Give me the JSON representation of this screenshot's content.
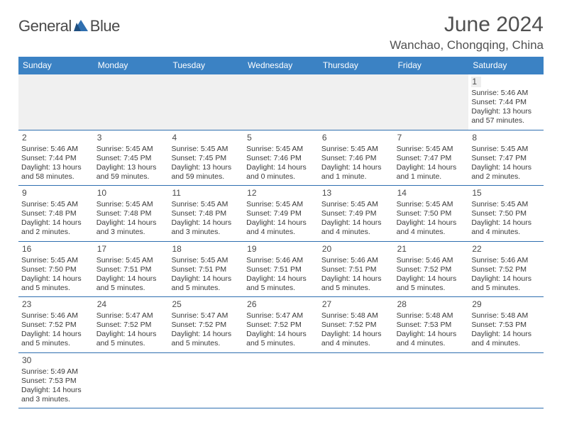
{
  "logo": {
    "text_gray": "General",
    "text_blue": "Blue",
    "icon_color": "#2f6fb0"
  },
  "title": "June 2024",
  "location": "Wanchao, Chongqing, China",
  "colors": {
    "header_bg": "#3b82c4",
    "header_text": "#ffffff",
    "row_divider": "#2f6fb0",
    "daynum_bg": "#eeeeee",
    "empty_bg": "#f0f0f0",
    "text": "#3a3a3a",
    "title_text": "#505050"
  },
  "weekdays": [
    "Sunday",
    "Monday",
    "Tuesday",
    "Wednesday",
    "Thursday",
    "Friday",
    "Saturday"
  ],
  "grid": [
    [
      {
        "empty": true
      },
      {
        "empty": true
      },
      {
        "empty": true
      },
      {
        "empty": true
      },
      {
        "empty": true
      },
      {
        "empty": true
      },
      {
        "day": "1",
        "sunrise": "Sunrise: 5:46 AM",
        "sunset": "Sunset: 7:44 PM",
        "daylight": "Daylight: 13 hours and 57 minutes."
      }
    ],
    [
      {
        "day": "2",
        "sunrise": "Sunrise: 5:46 AM",
        "sunset": "Sunset: 7:44 PM",
        "daylight": "Daylight: 13 hours and 58 minutes."
      },
      {
        "day": "3",
        "sunrise": "Sunrise: 5:45 AM",
        "sunset": "Sunset: 7:45 PM",
        "daylight": "Daylight: 13 hours and 59 minutes."
      },
      {
        "day": "4",
        "sunrise": "Sunrise: 5:45 AM",
        "sunset": "Sunset: 7:45 PM",
        "daylight": "Daylight: 13 hours and 59 minutes."
      },
      {
        "day": "5",
        "sunrise": "Sunrise: 5:45 AM",
        "sunset": "Sunset: 7:46 PM",
        "daylight": "Daylight: 14 hours and 0 minutes."
      },
      {
        "day": "6",
        "sunrise": "Sunrise: 5:45 AM",
        "sunset": "Sunset: 7:46 PM",
        "daylight": "Daylight: 14 hours and 1 minute."
      },
      {
        "day": "7",
        "sunrise": "Sunrise: 5:45 AM",
        "sunset": "Sunset: 7:47 PM",
        "daylight": "Daylight: 14 hours and 1 minute."
      },
      {
        "day": "8",
        "sunrise": "Sunrise: 5:45 AM",
        "sunset": "Sunset: 7:47 PM",
        "daylight": "Daylight: 14 hours and 2 minutes."
      }
    ],
    [
      {
        "day": "9",
        "sunrise": "Sunrise: 5:45 AM",
        "sunset": "Sunset: 7:48 PM",
        "daylight": "Daylight: 14 hours and 2 minutes."
      },
      {
        "day": "10",
        "sunrise": "Sunrise: 5:45 AM",
        "sunset": "Sunset: 7:48 PM",
        "daylight": "Daylight: 14 hours and 3 minutes."
      },
      {
        "day": "11",
        "sunrise": "Sunrise: 5:45 AM",
        "sunset": "Sunset: 7:48 PM",
        "daylight": "Daylight: 14 hours and 3 minutes."
      },
      {
        "day": "12",
        "sunrise": "Sunrise: 5:45 AM",
        "sunset": "Sunset: 7:49 PM",
        "daylight": "Daylight: 14 hours and 4 minutes."
      },
      {
        "day": "13",
        "sunrise": "Sunrise: 5:45 AM",
        "sunset": "Sunset: 7:49 PM",
        "daylight": "Daylight: 14 hours and 4 minutes."
      },
      {
        "day": "14",
        "sunrise": "Sunrise: 5:45 AM",
        "sunset": "Sunset: 7:50 PM",
        "daylight": "Daylight: 14 hours and 4 minutes."
      },
      {
        "day": "15",
        "sunrise": "Sunrise: 5:45 AM",
        "sunset": "Sunset: 7:50 PM",
        "daylight": "Daylight: 14 hours and 4 minutes."
      }
    ],
    [
      {
        "day": "16",
        "sunrise": "Sunrise: 5:45 AM",
        "sunset": "Sunset: 7:50 PM",
        "daylight": "Daylight: 14 hours and 5 minutes."
      },
      {
        "day": "17",
        "sunrise": "Sunrise: 5:45 AM",
        "sunset": "Sunset: 7:51 PM",
        "daylight": "Daylight: 14 hours and 5 minutes."
      },
      {
        "day": "18",
        "sunrise": "Sunrise: 5:45 AM",
        "sunset": "Sunset: 7:51 PM",
        "daylight": "Daylight: 14 hours and 5 minutes."
      },
      {
        "day": "19",
        "sunrise": "Sunrise: 5:46 AM",
        "sunset": "Sunset: 7:51 PM",
        "daylight": "Daylight: 14 hours and 5 minutes."
      },
      {
        "day": "20",
        "sunrise": "Sunrise: 5:46 AM",
        "sunset": "Sunset: 7:51 PM",
        "daylight": "Daylight: 14 hours and 5 minutes."
      },
      {
        "day": "21",
        "sunrise": "Sunrise: 5:46 AM",
        "sunset": "Sunset: 7:52 PM",
        "daylight": "Daylight: 14 hours and 5 minutes."
      },
      {
        "day": "22",
        "sunrise": "Sunrise: 5:46 AM",
        "sunset": "Sunset: 7:52 PM",
        "daylight": "Daylight: 14 hours and 5 minutes."
      }
    ],
    [
      {
        "day": "23",
        "sunrise": "Sunrise: 5:46 AM",
        "sunset": "Sunset: 7:52 PM",
        "daylight": "Daylight: 14 hours and 5 minutes."
      },
      {
        "day": "24",
        "sunrise": "Sunrise: 5:47 AM",
        "sunset": "Sunset: 7:52 PM",
        "daylight": "Daylight: 14 hours and 5 minutes."
      },
      {
        "day": "25",
        "sunrise": "Sunrise: 5:47 AM",
        "sunset": "Sunset: 7:52 PM",
        "daylight": "Daylight: 14 hours and 5 minutes."
      },
      {
        "day": "26",
        "sunrise": "Sunrise: 5:47 AM",
        "sunset": "Sunset: 7:52 PM",
        "daylight": "Daylight: 14 hours and 5 minutes."
      },
      {
        "day": "27",
        "sunrise": "Sunrise: 5:48 AM",
        "sunset": "Sunset: 7:52 PM",
        "daylight": "Daylight: 14 hours and 4 minutes."
      },
      {
        "day": "28",
        "sunrise": "Sunrise: 5:48 AM",
        "sunset": "Sunset: 7:53 PM",
        "daylight": "Daylight: 14 hours and 4 minutes."
      },
      {
        "day": "29",
        "sunrise": "Sunrise: 5:48 AM",
        "sunset": "Sunset: 7:53 PM",
        "daylight": "Daylight: 14 hours and 4 minutes."
      }
    ],
    [
      {
        "day": "30",
        "sunrise": "Sunrise: 5:49 AM",
        "sunset": "Sunset: 7:53 PM",
        "daylight": "Daylight: 14 hours and 3 minutes."
      },
      {
        "empty": true
      },
      {
        "empty": true
      },
      {
        "empty": true
      },
      {
        "empty": true
      },
      {
        "empty": true
      },
      {
        "empty": true
      }
    ]
  ]
}
